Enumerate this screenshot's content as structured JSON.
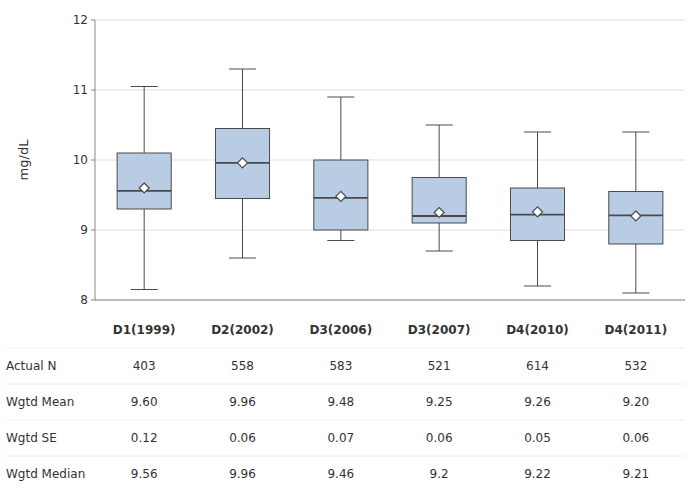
{
  "chart_data": {
    "type": "box",
    "ylabel": "mg/dL",
    "categories": [
      "D1(1999)",
      "D2(2002)",
      "D3(2006)",
      "D3(2007)",
      "D4(2010)",
      "D4(2011)"
    ],
    "q1": [
      9.3,
      9.45,
      9.0,
      9.1,
      8.85,
      8.8
    ],
    "median": [
      9.56,
      9.96,
      9.46,
      9.2,
      9.22,
      9.21
    ],
    "q3": [
      10.1,
      10.45,
      10.0,
      9.75,
      9.6,
      9.55
    ],
    "whislo": [
      8.15,
      8.6,
      8.85,
      8.7,
      8.2,
      8.1
    ],
    "whishi": [
      11.05,
      11.3,
      10.9,
      10.5,
      10.4,
      10.4
    ],
    "mean": [
      9.6,
      9.96,
      9.48,
      9.25,
      9.26,
      9.2
    ],
    "color": "#b8cce4",
    "ylim": [
      8.0,
      12.0
    ],
    "yticks": [
      8,
      9,
      10,
      11,
      12
    ],
    "grid": true,
    "table": [
      {
        "name": "Actual N",
        "values": [
          403,
          558,
          583,
          521,
          614,
          532
        ]
      },
      {
        "name": "Wgtd Mean",
        "values": [
          9.6,
          9.96,
          9.48,
          9.25,
          9.26,
          9.2
        ],
        "value_labels": [
          "9.60",
          "9.96",
          "9.48",
          "9.25",
          "9.26",
          "9.20"
        ]
      },
      {
        "name": "Wgtd SE",
        "values": [
          0.12,
          0.06,
          0.07,
          0.06,
          0.05,
          0.06
        ]
      },
      {
        "name": "Wgtd Median",
        "values": [
          9.56,
          9.96,
          9.46,
          9.2,
          9.22,
          9.21
        ]
      }
    ]
  }
}
